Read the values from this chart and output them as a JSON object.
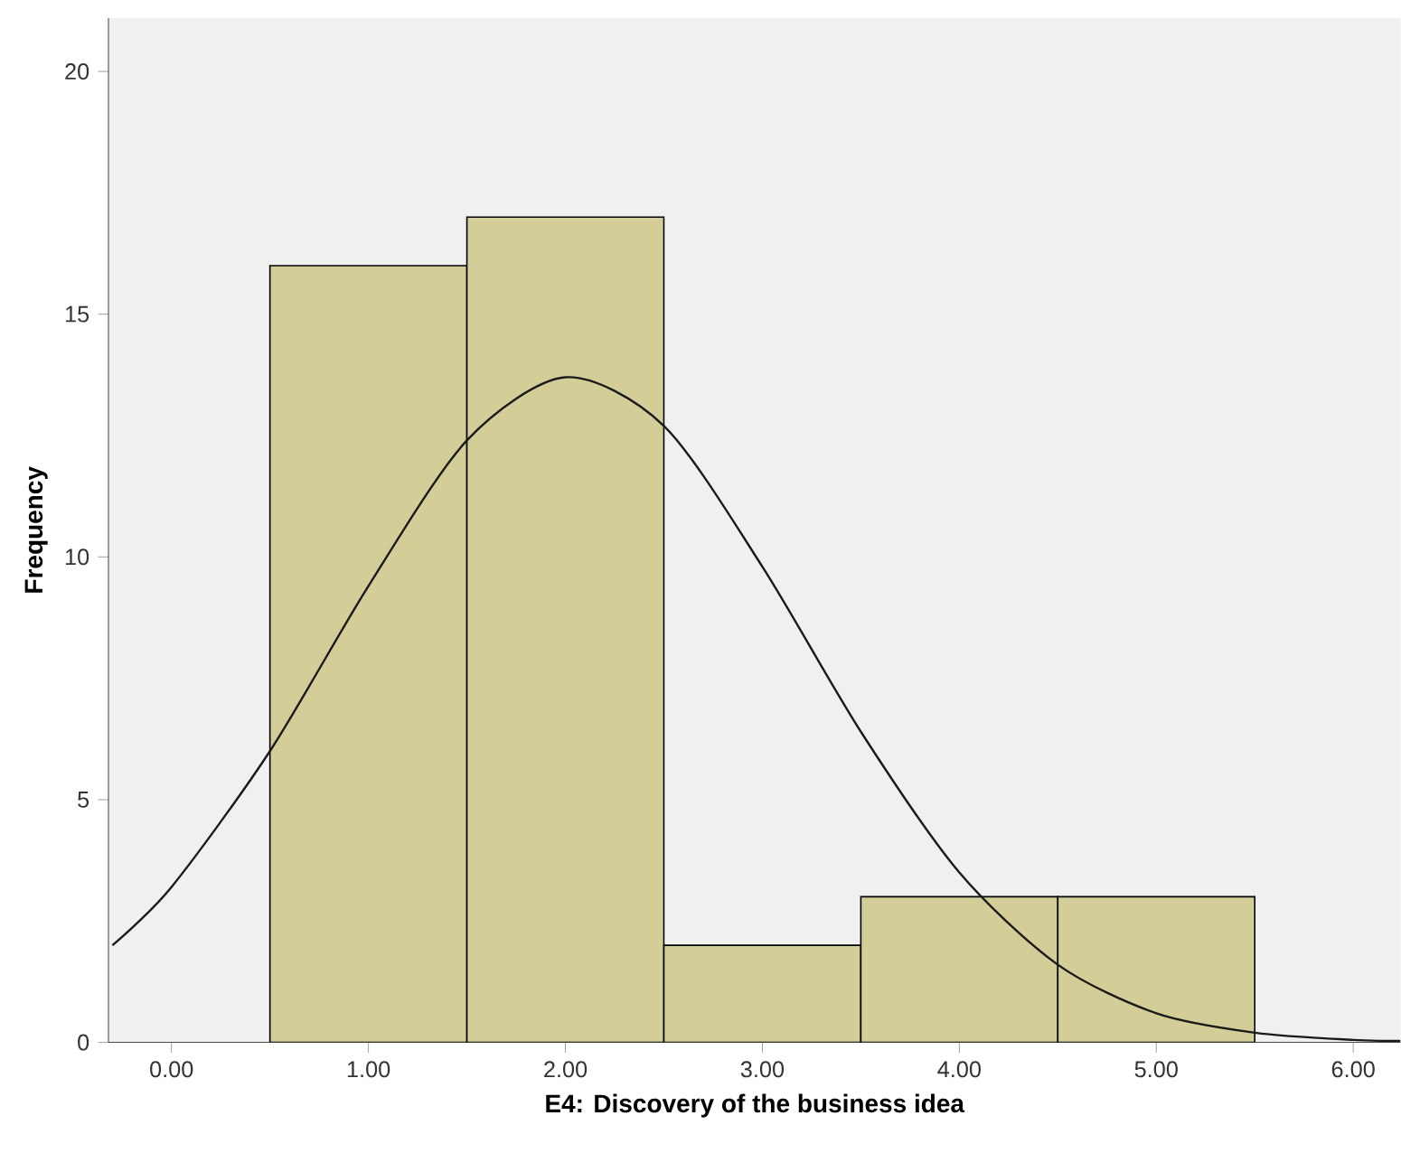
{
  "chart_data": {
    "type": "histogram",
    "xlabel": "E4: Discovery of the business idea",
    "ylabel": "Frequency",
    "series": [
      {
        "color": "#d3ce97",
        "bins": [
          0.5,
          1.5,
          2.5,
          3.5,
          4.5,
          5.5
        ],
        "values": [
          16,
          17,
          2,
          3,
          3
        ]
      },
      {
        "type": "line",
        "color": "#1a1a1a",
        "x": [
          -0.3,
          0,
          0.5,
          1,
          1.5,
          2,
          2.5,
          3,
          3.5,
          4,
          4.5,
          5,
          5.5,
          6,
          6.24
        ],
        "values": [
          2.0,
          3.2,
          6.0,
          9.4,
          12.4,
          13.7,
          12.7,
          9.8,
          6.4,
          3.5,
          1.6,
          0.6,
          0.2,
          0.05,
          0.03
        ]
      }
    ],
    "xlim": [
      -0.32,
      6.24
    ],
    "ylim": [
      0,
      21.1
    ],
    "xticks": [
      {
        "value": 0,
        "label": "0.00"
      },
      {
        "value": 1,
        "label": "1.00"
      },
      {
        "value": 2,
        "label": "2.00"
      },
      {
        "value": 3,
        "label": "3.00"
      },
      {
        "value": 4,
        "label": "4.00"
      },
      {
        "value": 5,
        "label": "5.00"
      },
      {
        "value": 6,
        "label": "6.00"
      }
    ],
    "yticks": [
      0,
      5,
      10,
      15,
      20
    ],
    "grid": false,
    "marker": "none",
    "line_style": "solid"
  }
}
